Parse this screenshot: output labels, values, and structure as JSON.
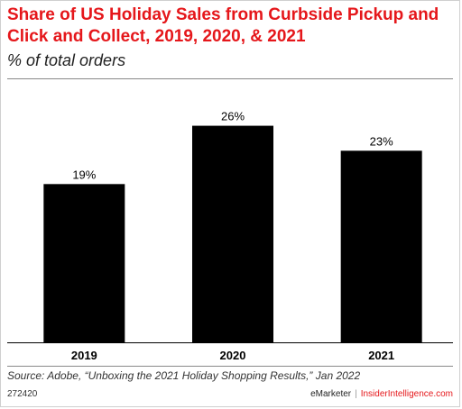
{
  "title": "Share of US Holiday Sales from Curbside Pickup and Click and Collect, 2019, 2020, & 2021",
  "subtitle": "% of total orders",
  "source": "Source: Adobe, “Unboxing the 2021 Holiday Shopping Results,” Jan 2022",
  "chart_id": "272420",
  "brand_left": "eMarketer",
  "brand_separator": "|",
  "brand_right": "InsiderIntelligence.com",
  "colors": {
    "accent": "#e5171b",
    "bar": "#000000"
  },
  "chart_data": {
    "type": "bar",
    "title": "Share of US Holiday Sales from Curbside Pickup and Click and Collect, 2019, 2020, & 2021",
    "subtitle": "% of total orders",
    "categories": [
      "2019",
      "2020",
      "2021"
    ],
    "values": [
      19,
      26,
      23
    ],
    "data_labels": [
      "19%",
      "26%",
      "23%"
    ],
    "ylim": [
      0,
      30
    ],
    "xlabel": "",
    "ylabel": "",
    "grid": false,
    "legend": "none"
  }
}
